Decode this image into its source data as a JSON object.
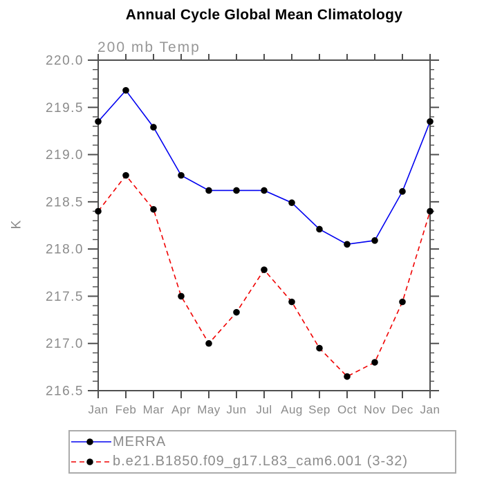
{
  "title": "Annual Cycle Global Mean Climatology",
  "subtitle": "200 mb Temp",
  "ylabel": "K",
  "chart_data": {
    "type": "line",
    "title": "Annual Cycle Global Mean Climatology",
    "subtitle": "200 mb Temp",
    "xlabel": "",
    "ylabel": "K",
    "categories": [
      "Jan",
      "Feb",
      "Mar",
      "Apr",
      "May",
      "Jun",
      "Jul",
      "Aug",
      "Sep",
      "Oct",
      "Nov",
      "Dec",
      "Jan"
    ],
    "ylim": [
      216.5,
      220.0
    ],
    "ytick_major_interval": 0.5,
    "ytick_minor_interval": 0.1,
    "grid": false,
    "legend_position": "bottom",
    "series": [
      {
        "name": "MERRA",
        "line_style": "solid",
        "color": "#0000f0",
        "marker": "filled-circle",
        "marker_color": "#000000",
        "values": [
          219.35,
          219.68,
          219.29,
          218.78,
          218.62,
          218.62,
          218.62,
          218.49,
          218.21,
          218.05,
          218.09,
          218.61,
          219.35
        ]
      },
      {
        "name": "b.e21.B1850.f09_g17.L83_cam6.001 (3-32)",
        "line_style": "dashed",
        "color": "#f00000",
        "marker": "filled-circle",
        "marker_color": "#000000",
        "values": [
          218.4,
          218.78,
          218.42,
          217.5,
          217.0,
          217.33,
          217.78,
          217.44,
          216.95,
          216.65,
          216.8,
          217.44,
          218.4
        ]
      }
    ]
  },
  "colors": {
    "axis": "#4f4f4f",
    "tick_label": "#8b8b8b",
    "title": "#000000",
    "subtitle_gray": "#979797",
    "merra_blue": "#0000f0",
    "model_red": "#f00000",
    "marker_black": "#000000",
    "legend_border": "#ababab"
  }
}
